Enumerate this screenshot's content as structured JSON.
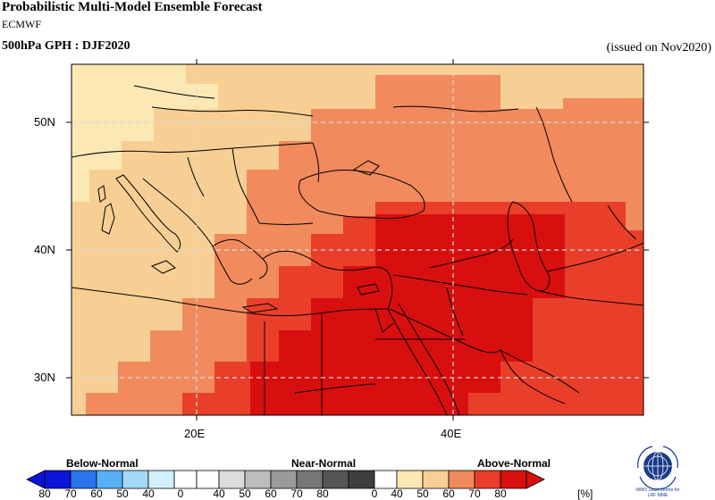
{
  "header": {
    "title": "Probabilistic Multi-Model Ensemble Forecast",
    "center": "ECMWF",
    "subtitle": "500hPa GPH : DJF2020",
    "issued": "(issued on Nov2020)"
  },
  "map": {
    "projection": "lat-lon",
    "lon_range": [
      10,
      56
    ],
    "lat_range": [
      27,
      54
    ],
    "x_ticks": [
      "20E",
      "40E"
    ],
    "y_ticks": [
      "50N",
      "40N",
      "30N"
    ],
    "grid": true,
    "dominant_category": "Above-Normal",
    "probability_bands_pct": [
      "40-50",
      "50-60",
      "60-70",
      "70-80"
    ]
  },
  "legend": {
    "categories": [
      "Below-Normal",
      "Near-Normal",
      "Above-Normal"
    ],
    "below_labels": [
      "80",
      "70",
      "60",
      "50",
      "40"
    ],
    "near_labels": [
      "0",
      "40",
      "50",
      "60",
      "70",
      "80"
    ],
    "above_labels": [
      "0",
      "40",
      "50",
      "60",
      "70",
      "80"
    ],
    "unit": "[%]",
    "below_colors": [
      "#0a14d6",
      "#2a74ee",
      "#58b0f4",
      "#a2d8f8",
      "#d2f0fb"
    ],
    "near_colors": [
      "#ffffff",
      "#dcdcdc",
      "#bdbdbd",
      "#9a9a9a",
      "#777777",
      "#555555"
    ],
    "above_colors": [
      "#fbe8b5",
      "#f7cf94",
      "#f18a5d",
      "#e93f2a",
      "#d80f0f"
    ]
  },
  "logo": {
    "text_line1": "WMO Lead Centre for",
    "text_line2": "LRF MME"
  }
}
